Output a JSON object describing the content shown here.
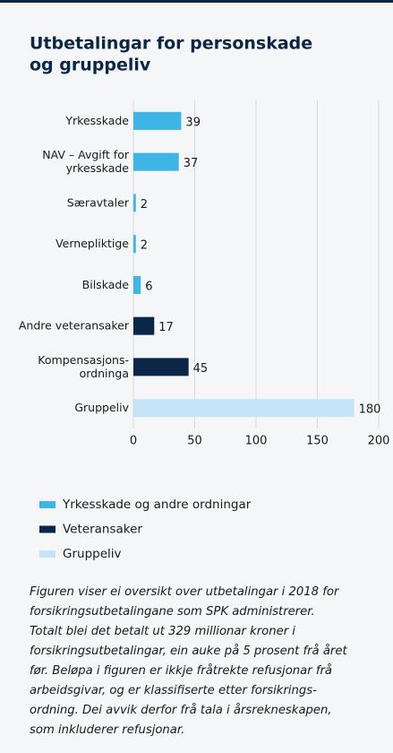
{
  "chart_data": {
    "type": "bar",
    "orientation": "horizontal",
    "title": [
      "Utbetalingar for personskade",
      "og gruppeliv"
    ],
    "categories": [
      "Yrkesskade",
      "NAV – Avgift for\nyrkesskade",
      "Særavtaler",
      "Vernepliktige",
      "Bilskade",
      "Andre veteransaker",
      "Kompensasjons-\nordninga",
      "Gruppeliv"
    ],
    "series": [
      {
        "name": "Yrkesskade og andre ordningar",
        "color": "#3db5e6",
        "values": [
          39,
          37,
          2,
          2,
          6,
          null,
          null,
          null
        ]
      },
      {
        "name": "Veteransaker",
        "color": "#0c2647",
        "values": [
          null,
          null,
          null,
          null,
          null,
          17,
          45,
          null
        ]
      },
      {
        "name": "Gruppeliv",
        "color": "#c6e4f7",
        "values": [
          null,
          null,
          null,
          null,
          null,
          null,
          null,
          180
        ]
      }
    ],
    "xlim": [
      0,
      200
    ],
    "xticks": [
      0,
      50,
      100,
      150,
      200
    ],
    "grid": true,
    "caption": [
      "Figuren viser ei oversikt over utbetalingar i 2018 for",
      "forsikringsutbetalingane som SPK administrerer.",
      "Totalt blei det betalt ut 329 millionar kroner i",
      "forsikringsutbetalingar, ein auke på 5 prosent frå året",
      "før. Beløpa i figuren er ikkje fråtrekte refusjonar frå",
      "arbeidsgivar, og er klassifiserte etter forsikrings-",
      "ordning. Dei avvik derfor frå tala i årsrekneskapen,",
      "som inkluderer refusjonar."
    ]
  }
}
